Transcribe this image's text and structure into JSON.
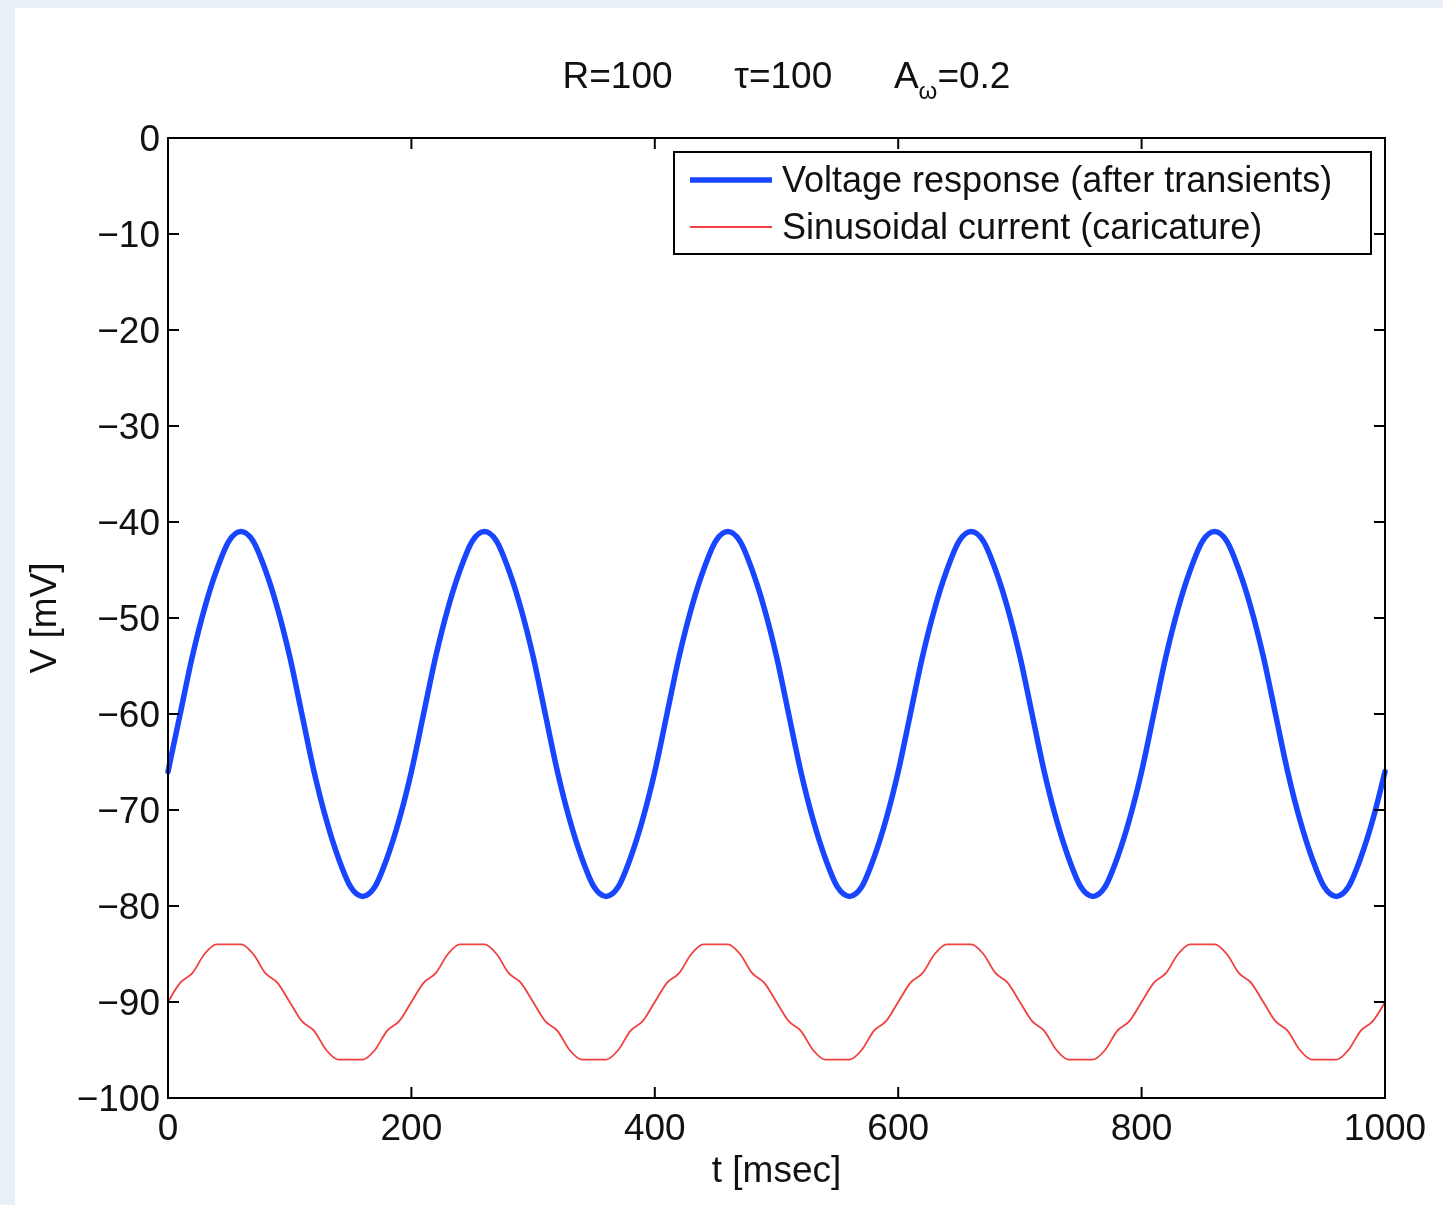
{
  "chart_data": {
    "type": "line",
    "title": "R=100      τ=100      A$_{ω}$=0.2",
    "xlabel": "t [msec]",
    "ylabel": "V [mV]",
    "x": [
      0,
      10,
      20,
      30,
      40,
      50,
      60,
      70,
      80,
      90,
      100,
      110,
      120,
      130,
      140,
      150,
      160,
      170,
      180,
      190,
      200,
      210,
      220,
      230,
      240,
      250,
      260,
      270,
      280,
      290,
      300,
      310,
      320,
      330,
      340,
      350,
      360,
      370,
      380,
      390,
      400,
      410,
      420,
      430,
      440,
      450,
      460,
      470,
      480,
      490,
      500,
      510,
      520,
      530,
      540,
      550,
      560,
      570,
      580,
      590,
      600,
      610,
      620,
      630,
      640,
      650,
      660,
      670,
      680,
      690,
      700,
      710,
      720,
      730,
      740,
      750,
      760,
      770,
      780,
      790,
      800,
      810,
      820,
      830,
      840,
      850,
      860,
      870,
      880,
      890,
      900,
      910,
      920,
      930,
      940,
      950,
      960,
      970,
      980,
      990,
      1000
    ],
    "series": [
      {
        "name": "Voltage response (after transients)",
        "color": "#1846ff",
        "values": [
          -66,
          -60,
          -54,
          -49,
          -45,
          -42,
          -41,
          -42,
          -45,
          -49,
          -54,
          -60,
          -66,
          -71,
          -75,
          -78,
          -79,
          -78,
          -75,
          -71,
          -66,
          -60,
          -54,
          -49,
          -45,
          -42,
          -41,
          -42,
          -45,
          -49,
          -54,
          -60,
          -66,
          -71,
          -75,
          -78,
          -79,
          -78,
          -75,
          -71,
          -66,
          -60,
          -54,
          -49,
          -45,
          -42,
          -41,
          -42,
          -45,
          -49,
          -54,
          -60,
          -66,
          -71,
          -75,
          -78,
          -79,
          -78,
          -75,
          -71,
          -66,
          -60,
          -54,
          -49,
          -45,
          -42,
          -41,
          -42,
          -45,
          -49,
          -54,
          -60,
          -66,
          -71,
          -75,
          -78,
          -79,
          -78,
          -75,
          -71,
          -66,
          -60,
          -54,
          -49,
          -45,
          -42,
          -41,
          -42,
          -45,
          -49,
          -54,
          -60,
          -66,
          -71,
          -75,
          -78,
          -79,
          -78,
          -75,
          -71,
          -66
        ]
      },
      {
        "name": "Sinusoidal current (caricature)",
        "color": "#f04040",
        "values": [
          -90,
          -88,
          -87,
          -85,
          -84,
          -84,
          -84,
          -85,
          -87,
          -88,
          -90,
          -92,
          -93,
          -95,
          -96,
          -96,
          -96,
          -95,
          -93,
          -92,
          -90,
          -88,
          -87,
          -85,
          -84,
          -84,
          -84,
          -85,
          -87,
          -88,
          -90,
          -92,
          -93,
          -95,
          -96,
          -96,
          -96,
          -95,
          -93,
          -92,
          -90,
          -88,
          -87,
          -85,
          -84,
          -84,
          -84,
          -85,
          -87,
          -88,
          -90,
          -92,
          -93,
          -95,
          -96,
          -96,
          -96,
          -95,
          -93,
          -92,
          -90,
          -88,
          -87,
          -85,
          -84,
          -84,
          -84,
          -85,
          -87,
          -88,
          -90,
          -92,
          -93,
          -95,
          -96,
          -96,
          -96,
          -95,
          -93,
          -92,
          -90,
          -88,
          -87,
          -85,
          -84,
          -84,
          -84,
          -85,
          -87,
          -88,
          -90,
          -92,
          -93,
          -95,
          -96,
          -96,
          -96,
          -95,
          -93,
          -92,
          -90
        ]
      }
    ],
    "xlim": [
      0,
      1000
    ],
    "xticks": [
      0,
      200,
      400,
      600,
      800,
      1000
    ],
    "ylim": [
      -100,
      0
    ],
    "yticks": [
      {
        "value": -100,
        "label": "−100"
      },
      {
        "value": -90,
        "label": "−90"
      },
      {
        "value": -80,
        "label": "−80"
      },
      {
        "value": -70,
        "label": "−70"
      },
      {
        "value": -60,
        "label": "−60"
      },
      {
        "value": -50,
        "label": "−50"
      },
      {
        "value": -40,
        "label": "−40"
      },
      {
        "value": -30,
        "label": "−30"
      },
      {
        "value": -20,
        "label": "−20"
      },
      {
        "value": -10,
        "label": "−10"
      },
      0
    ],
    "grid": false,
    "legend": "top right",
    "line_style": "solid"
  }
}
